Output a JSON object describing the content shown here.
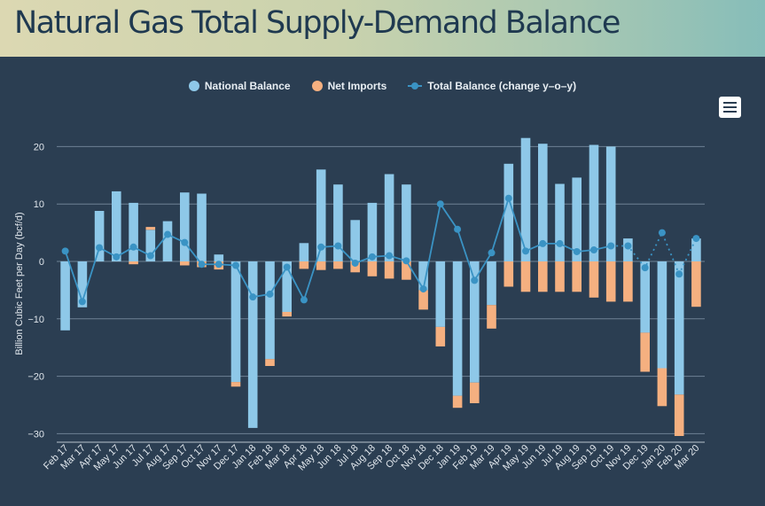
{
  "title": "Natural Gas Total Supply-Demand Balance",
  "legend": {
    "national": "National Balance",
    "imports": "Net Imports",
    "total": "Total Balance (change y–o–y)"
  },
  "colors": {
    "national": "#8ec8e8",
    "imports": "#f5b080",
    "total": "#3a93c4",
    "grid": "#6e8194"
  },
  "chart_data": {
    "type": "bar",
    "title": "Natural Gas Total Supply-Demand Balance",
    "ylabel": "Billion Cubic Feet per Day (bcf/d)",
    "xlabel": "",
    "ylim": [
      -30,
      22
    ],
    "yticks": [
      20,
      10,
      0,
      -10,
      -20,
      -30
    ],
    "categories": [
      "Feb 17",
      "Mar 17",
      "Apr 17",
      "May 17",
      "Jun 17",
      "Jul 17",
      "Aug 17",
      "Sep 17",
      "Oct 17",
      "Nov 17",
      "Dec 17",
      "Jan 18",
      "Feb 18",
      "Mar 18",
      "Apr 18",
      "May 18",
      "Jun 18",
      "Jul 18",
      "Aug 18",
      "Sep 18",
      "Oct 18",
      "Nov 18",
      "Dec 18",
      "Jan 19",
      "Feb 19",
      "Mar 19",
      "Apr 19",
      "May 19",
      "Jun 19",
      "Jul 19",
      "Aug 19",
      "Sep 19",
      "Oct 19",
      "Nov 19",
      "Dec 19",
      "Jan 20",
      "Feb 20",
      "Mar 20"
    ],
    "series": [
      {
        "name": "National Balance",
        "type": "stacked-bar",
        "values": [
          -12,
          -8,
          8.8,
          12.2,
          10.2,
          5.5,
          7,
          12,
          11.8,
          1.2,
          -21,
          -29,
          -17,
          -8.8,
          3.2,
          16,
          13.4,
          7.2,
          10.2,
          15.2,
          13.4,
          -5,
          -11.4,
          -23.4,
          -21.1,
          -7.6,
          17,
          21.5,
          20.5,
          13.5,
          14.6,
          20.3,
          20,
          4,
          -12.4,
          -18.6,
          -23.2,
          4
        ]
      },
      {
        "name": "Net Imports",
        "type": "stacked-bar",
        "values": [
          0,
          0,
          0,
          0,
          -0.5,
          0.5,
          0,
          -0.7,
          -1,
          -1.4,
          -0.8,
          0,
          -1.2,
          -0.8,
          -1.3,
          -1.5,
          -1.3,
          -1.9,
          -2.6,
          -3,
          -3.2,
          -3.4,
          -3.4,
          -2.1,
          -3.6,
          -4.1,
          -4.4,
          -5.3,
          -5.3,
          -5.3,
          -5.3,
          -6.3,
          -7,
          -7,
          -6.8,
          -6.6,
          -7.2,
          -7.9
        ]
      },
      {
        "name": "Total Balance (change y–o–y)",
        "type": "line",
        "values": [
          1.8,
          -7,
          2.4,
          0.8,
          2.5,
          1,
          4.7,
          3.3,
          -0.5,
          -0.5,
          -0.7,
          -6.2,
          -5.7,
          -1,
          -6.7,
          2.5,
          2.7,
          -0.3,
          0.8,
          1,
          0.1,
          -4.8,
          10,
          5.6,
          -3.3,
          1.5,
          11,
          1.8,
          3.1,
          3.1,
          1.7,
          2,
          2.7,
          2.7,
          -1.1,
          5,
          -2.2,
          4
        ],
        "dotted_from_index": 32
      }
    ]
  }
}
